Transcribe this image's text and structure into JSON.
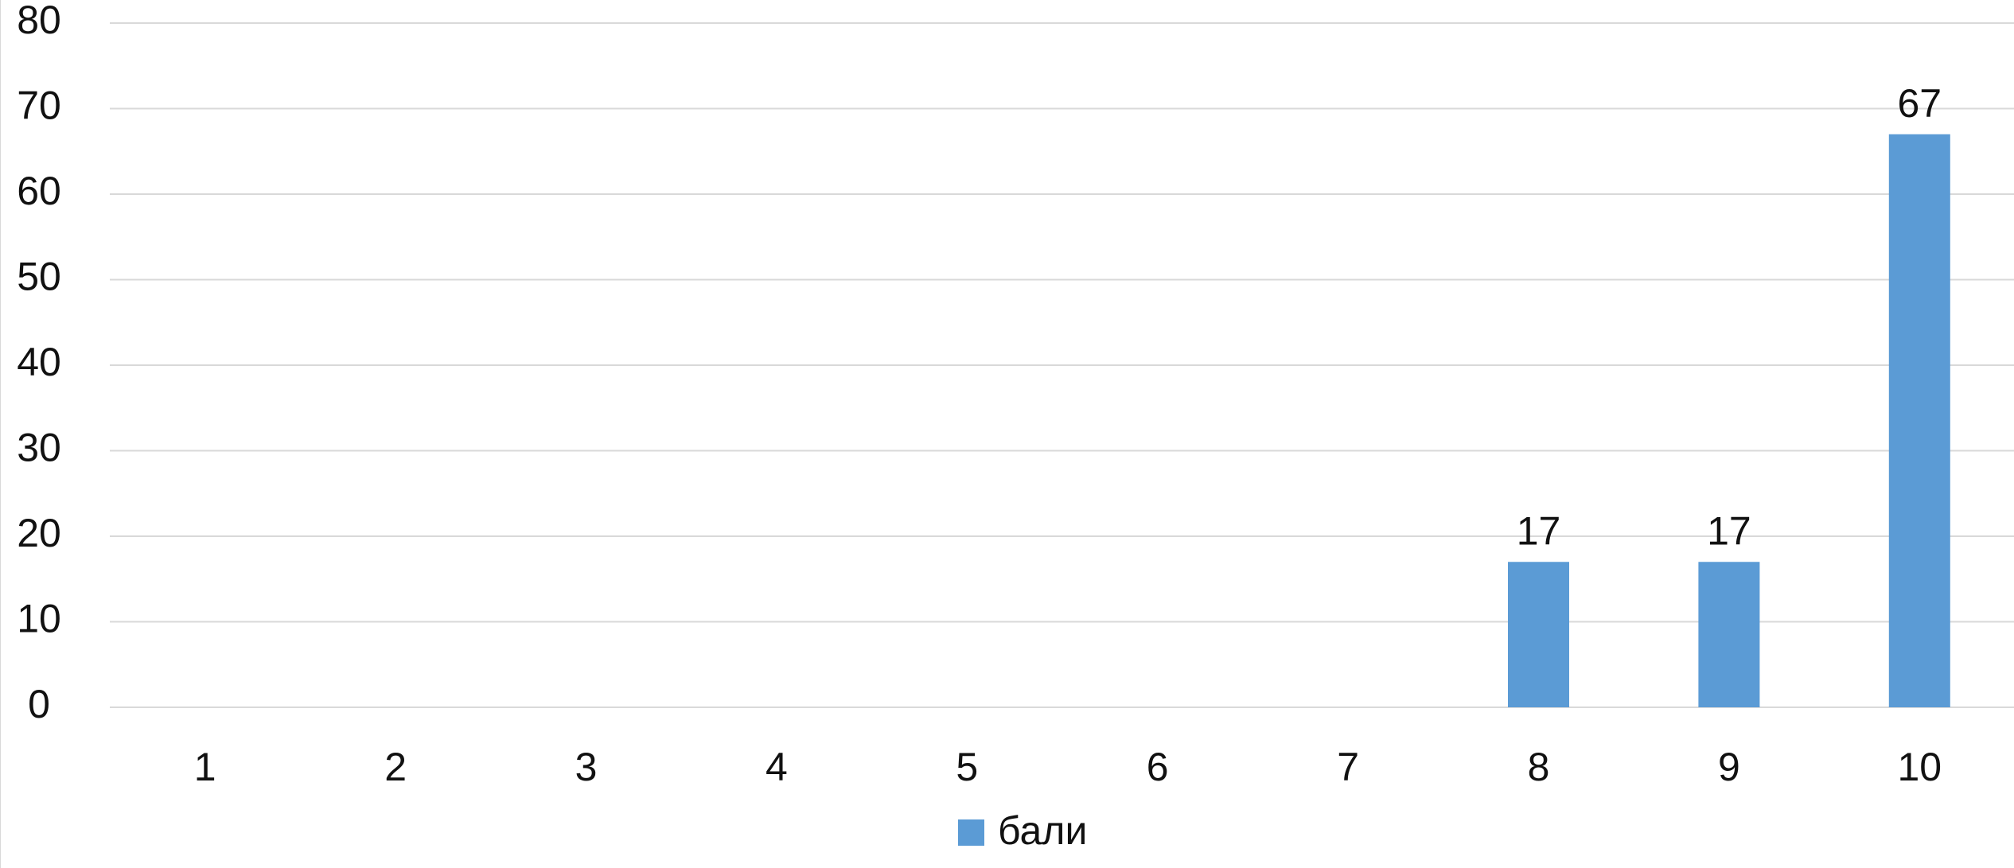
{
  "chart_data": {
    "type": "bar",
    "categories": [
      "1",
      "2",
      "3",
      "4",
      "5",
      "6",
      "7",
      "8",
      "9",
      "10"
    ],
    "series": [
      {
        "name": "бали",
        "values": [
          0,
          0,
          0,
          0,
          0,
          0,
          0,
          17,
          17,
          67
        ],
        "color": "#5b9bd5"
      }
    ],
    "data_labels": [
      "",
      "",
      "",
      "",
      "",
      "",
      "",
      "17",
      "17",
      "67"
    ],
    "ylim": [
      0,
      80
    ],
    "yticks": [
      0,
      10,
      20,
      30,
      40,
      50,
      60,
      70,
      80
    ],
    "grid": true,
    "legend_position": "bottom"
  }
}
